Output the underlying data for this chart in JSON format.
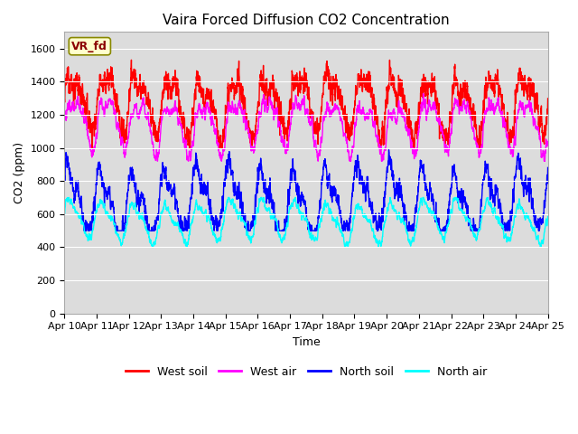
{
  "title": "Vaira Forced Diffusion CO2 Concentration",
  "xlabel": "Time",
  "ylabel": "CO2 (ppm)",
  "legend_label": "VR_fd",
  "series_labels": [
    "West soil",
    "West air",
    "North soil",
    "North air"
  ],
  "series_colors": [
    "red",
    "magenta",
    "blue",
    "cyan"
  ],
  "series_linewidths": [
    1.0,
    1.0,
    1.0,
    1.0
  ],
  "ylim": [
    0,
    1700
  ],
  "yticks": [
    0,
    200,
    400,
    600,
    800,
    1000,
    1200,
    1400,
    1600
  ],
  "xlim_start": 0,
  "xlim_end": 15,
  "x_tick_labels": [
    "Apr 10",
    "Apr 11",
    "Apr 12",
    "Apr 13",
    "Apr 14",
    "Apr 15",
    "Apr 16",
    "Apr 17",
    "Apr 18",
    "Apr 19",
    "Apr 20",
    "Apr 21",
    "Apr 22",
    "Apr 23",
    "Apr 24",
    "Apr 25"
  ],
  "n_points": 3600,
  "background_color": "#dcdcdc",
  "title_fontsize": 11,
  "axis_label_fontsize": 9,
  "tick_fontsize": 8
}
